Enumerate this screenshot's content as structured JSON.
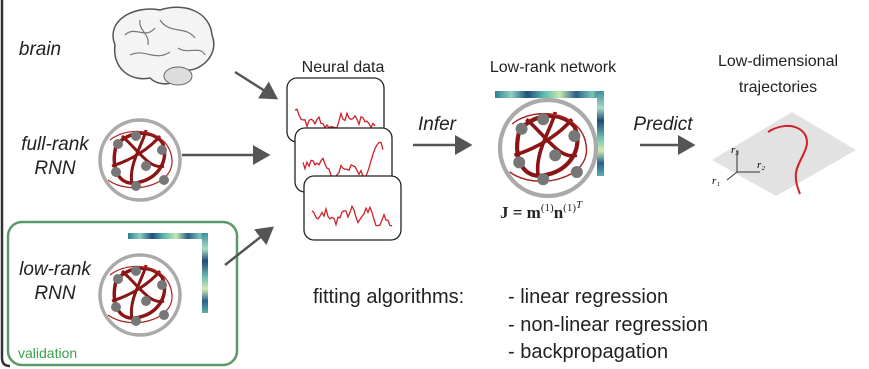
{
  "inputs": [
    {
      "label": [
        "brain"
      ]
    },
    {
      "label": [
        "full-rank",
        "RNN"
      ]
    },
    {
      "label": [
        "low-rank",
        "RNN"
      ],
      "box_label": "validation"
    }
  ],
  "neural_data": {
    "title": "Neural data"
  },
  "infer": "Infer",
  "network": {
    "title": "Low-rank network",
    "equation": [
      "J = m",
      "(1)",
      "n",
      "(1)",
      "T"
    ]
  },
  "predict": "Predict",
  "trajectories": {
    "title": [
      "Low-dimensional",
      "trajectories"
    ],
    "axes": [
      "r₁",
      "r₂",
      "r₃"
    ]
  },
  "fitting": {
    "label": "fitting algorithms:",
    "items": [
      "- linear regression",
      "- non-linear regression",
      "- backpropagation"
    ]
  }
}
